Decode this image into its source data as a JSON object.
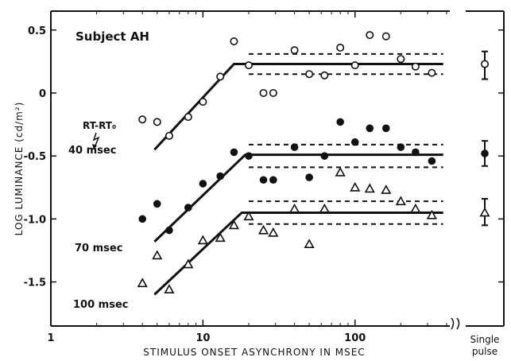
{
  "chart_data": {
    "type": "scatter",
    "title": "",
    "annotation": "Subject AH",
    "xlabel": "STIMULUS ONSET ASYNCHRONY IN MSEC",
    "ylabel": "LOG LUMINANCE (cd/m²)",
    "x_scale": "log",
    "xlim": [
      1,
      420
    ],
    "ylim": [
      -1.85,
      0.65
    ],
    "x_ticks": [
      {
        "value": 1,
        "label": "1"
      },
      {
        "value": 10,
        "label": "10"
      },
      {
        "value": 100,
        "label": "100"
      }
    ],
    "y_ticks": [
      {
        "value": 0.5,
        "label": "0.5"
      },
      {
        "value": 0,
        "label": "0"
      },
      {
        "value": -0.5,
        "label": "-0.5"
      },
      {
        "value": -1.0,
        "label": "-1.0"
      },
      {
        "value": -1.5,
        "label": "-1.5"
      }
    ],
    "rt_label": "RT-RT₀",
    "single_pulse_label": [
      "Single",
      "pulse"
    ],
    "series": [
      {
        "name": "40 msec",
        "label": "40 msec",
        "marker": "open-circle",
        "points": [
          {
            "x": 4,
            "y": -0.21
          },
          {
            "x": 5,
            "y": -0.23
          },
          {
            "x": 6,
            "y": -0.34
          },
          {
            "x": 8,
            "y": -0.19
          },
          {
            "x": 10,
            "y": -0.07
          },
          {
            "x": 13,
            "y": 0.13
          },
          {
            "x": 16,
            "y": 0.41
          },
          {
            "x": 20,
            "y": 0.22
          },
          {
            "x": 25,
            "y": 0.0
          },
          {
            "x": 29,
            "y": 0.0
          },
          {
            "x": 40,
            "y": 0.34
          },
          {
            "x": 50,
            "y": 0.15
          },
          {
            "x": 63,
            "y": 0.14
          },
          {
            "x": 80,
            "y": 0.36
          },
          {
            "x": 100,
            "y": 0.22
          },
          {
            "x": 125,
            "y": 0.46
          },
          {
            "x": 160,
            "y": 0.45
          },
          {
            "x": 200,
            "y": 0.27
          },
          {
            "x": 250,
            "y": 0.21
          },
          {
            "x": 320,
            "y": 0.16
          }
        ],
        "fit": {
          "rise_from": [
            4.8,
            -0.45
          ],
          "knee": [
            16,
            0.23
          ],
          "plateau_to": 380
        },
        "band": [
          0.15,
          0.31
        ],
        "single_pulse": {
          "mean": 0.23,
          "low": 0.11,
          "high": 0.33
        }
      },
      {
        "name": "70 msec",
        "label": "70 msec",
        "marker": "filled-circle",
        "points": [
          {
            "x": 4,
            "y": -1.0
          },
          {
            "x": 5,
            "y": -0.88
          },
          {
            "x": 6,
            "y": -1.09
          },
          {
            "x": 8,
            "y": -0.91
          },
          {
            "x": 10,
            "y": -0.72
          },
          {
            "x": 13,
            "y": -0.66
          },
          {
            "x": 16,
            "y": -0.47
          },
          {
            "x": 20,
            "y": -0.5
          },
          {
            "x": 25,
            "y": -0.69
          },
          {
            "x": 29,
            "y": -0.69
          },
          {
            "x": 40,
            "y": -0.43
          },
          {
            "x": 50,
            "y": -0.67
          },
          {
            "x": 63,
            "y": -0.5
          },
          {
            "x": 80,
            "y": -0.23
          },
          {
            "x": 100,
            "y": -0.39
          },
          {
            "x": 125,
            "y": -0.28
          },
          {
            "x": 160,
            "y": -0.28
          },
          {
            "x": 200,
            "y": -0.43
          },
          {
            "x": 250,
            "y": -0.47
          },
          {
            "x": 320,
            "y": -0.54
          }
        ],
        "fit": {
          "rise_from": [
            4.8,
            -1.18
          ],
          "knee": [
            19,
            -0.49
          ],
          "plateau_to": 380
        },
        "band": [
          -0.59,
          -0.41
        ],
        "single_pulse": {
          "mean": -0.48,
          "low": -0.58,
          "high": -0.38
        }
      },
      {
        "name": "100 msec",
        "label": "100 msec",
        "marker": "open-triangle",
        "points": [
          {
            "x": 4,
            "y": -1.51
          },
          {
            "x": 5,
            "y": -1.29
          },
          {
            "x": 6,
            "y": -1.56
          },
          {
            "x": 8,
            "y": -1.36
          },
          {
            "x": 10,
            "y": -1.17
          },
          {
            "x": 13,
            "y": -1.15
          },
          {
            "x": 16,
            "y": -1.05
          },
          {
            "x": 20,
            "y": -0.98
          },
          {
            "x": 25,
            "y": -1.09
          },
          {
            "x": 29,
            "y": -1.11
          },
          {
            "x": 40,
            "y": -0.92
          },
          {
            "x": 50,
            "y": -1.2
          },
          {
            "x": 63,
            "y": -0.92
          },
          {
            "x": 80,
            "y": -0.63
          },
          {
            "x": 100,
            "y": -0.75
          },
          {
            "x": 125,
            "y": -0.76
          },
          {
            "x": 160,
            "y": -0.77
          },
          {
            "x": 200,
            "y": -0.86
          },
          {
            "x": 250,
            "y": -0.92
          },
          {
            "x": 320,
            "y": -0.97
          }
        ],
        "fit": {
          "rise_from": [
            4.8,
            -1.6
          ],
          "knee": [
            18,
            -0.95
          ],
          "plateau_to": 380
        },
        "band": [
          -1.04,
          -0.86
        ],
        "single_pulse": {
          "mean": -0.95,
          "low": -1.05,
          "high": -0.84
        }
      }
    ]
  }
}
